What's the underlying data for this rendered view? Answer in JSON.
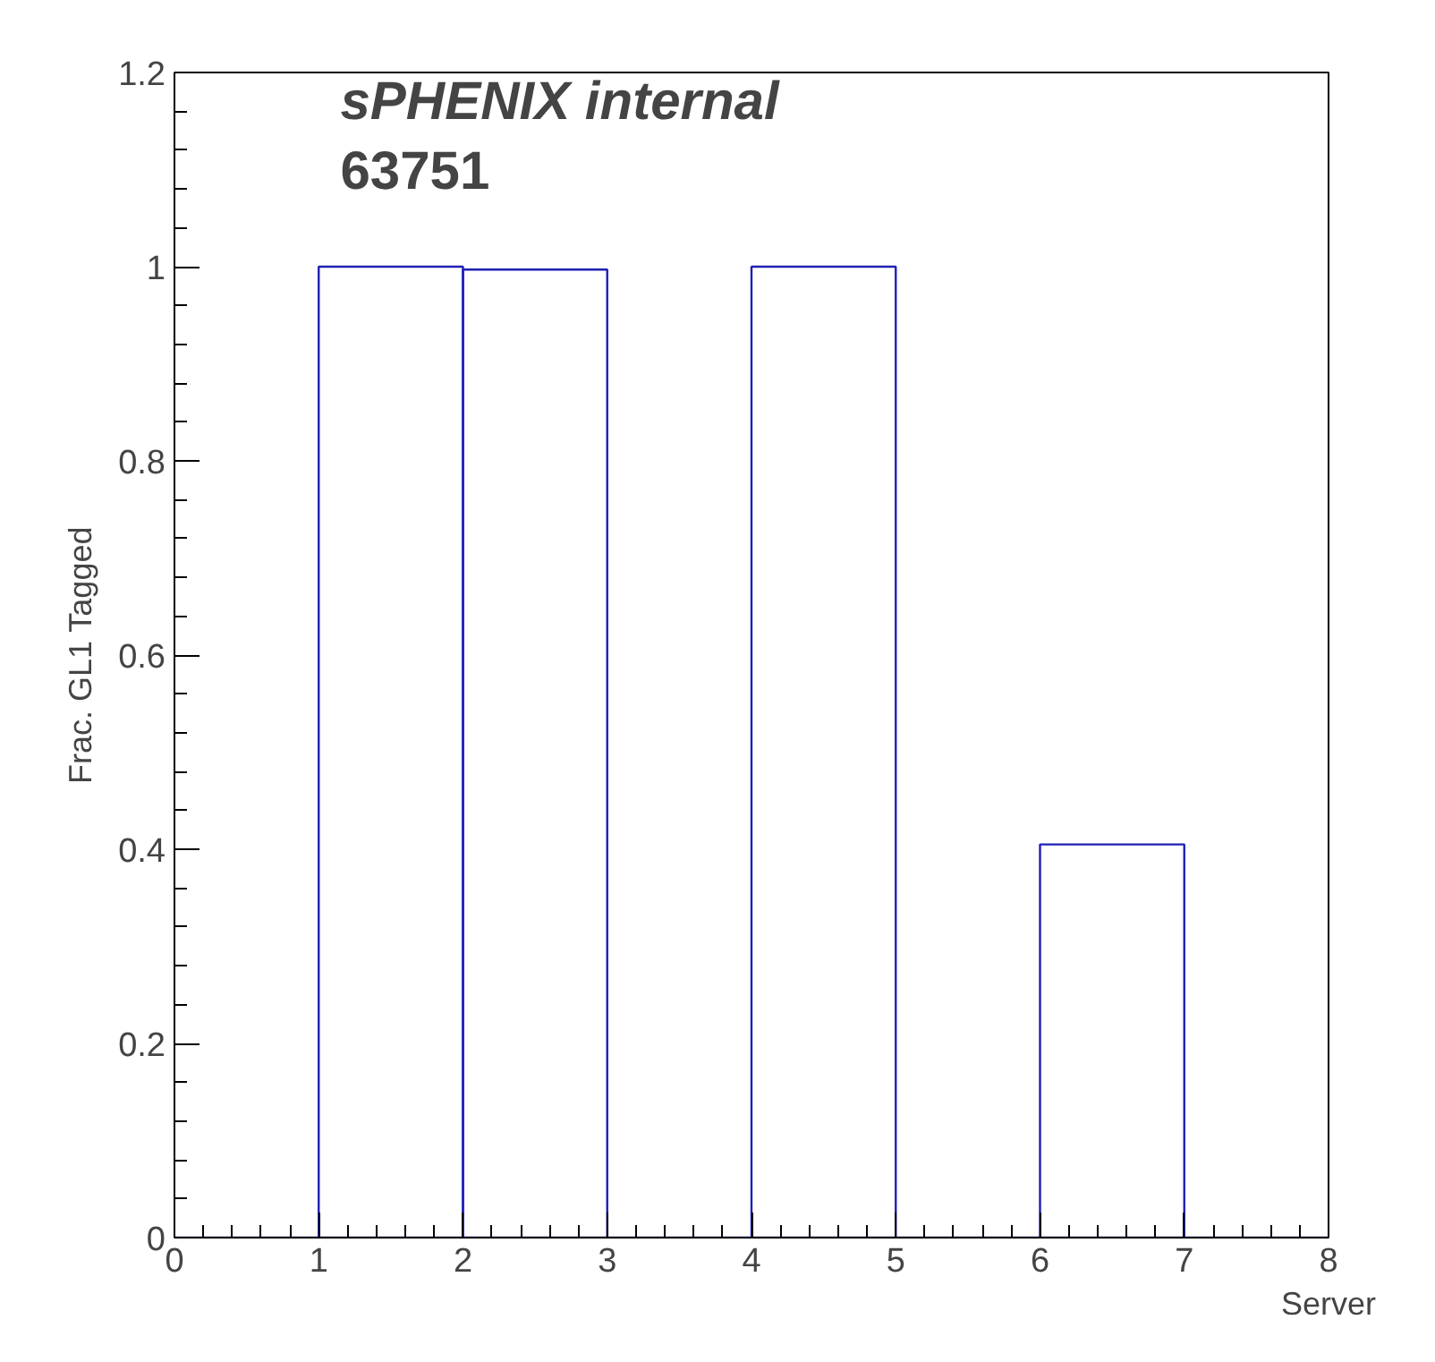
{
  "chart_data": {
    "type": "histogram",
    "xlabel": "Server",
    "ylabel": "Frac. GL1 Tagged",
    "annotations": [
      "sPHENIX internal",
      "63751"
    ],
    "bins": [
      0,
      1,
      2,
      3,
      4,
      5,
      6,
      7,
      8
    ],
    "values": [
      0,
      1,
      0.997,
      0,
      1,
      0,
      0.405,
      0
    ],
    "color": "#1f1fb4",
    "xlim": [
      0,
      8
    ],
    "ylim": [
      0,
      1.2
    ],
    "xticks": [
      0,
      1,
      2,
      3,
      4,
      5,
      6,
      7,
      8
    ],
    "yticks": [
      0,
      0.2,
      0.4,
      0.6,
      0.8,
      1,
      1.2
    ],
    "grid": false
  }
}
